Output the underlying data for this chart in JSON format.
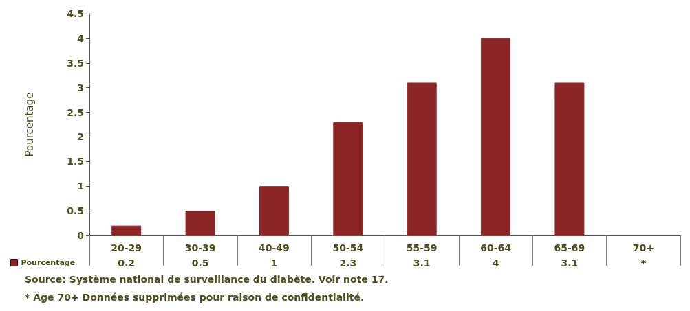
{
  "chart_data": {
    "type": "bar",
    "ylabel": "Pourcentage",
    "categories": [
      "20-29",
      "30-39",
      "40-49",
      "50-54",
      "55-59",
      "60-64",
      "65-69",
      "70+"
    ],
    "series": [
      {
        "name": "Pourcentage",
        "color": "#8b2424",
        "values": [
          0.2,
          0.5,
          1,
          2.3,
          3.1,
          4,
          3.1,
          null
        ],
        "value_labels": [
          "0.2",
          "0.5",
          "1",
          "2.3",
          "3.1",
          "4",
          "3.1",
          "*"
        ]
      }
    ],
    "ylim": [
      0,
      4.5
    ],
    "yticks": [
      0,
      0.5,
      1,
      1.5,
      2,
      2.5,
      3,
      3.5,
      4,
      4.5
    ],
    "grid": false,
    "legend": "bottom left",
    "annotations": [
      "Source: Système national de surveillance du diabète. Voir note 17.",
      "* Âge 70+ Données supprimées pour raison de confidentialité."
    ]
  }
}
